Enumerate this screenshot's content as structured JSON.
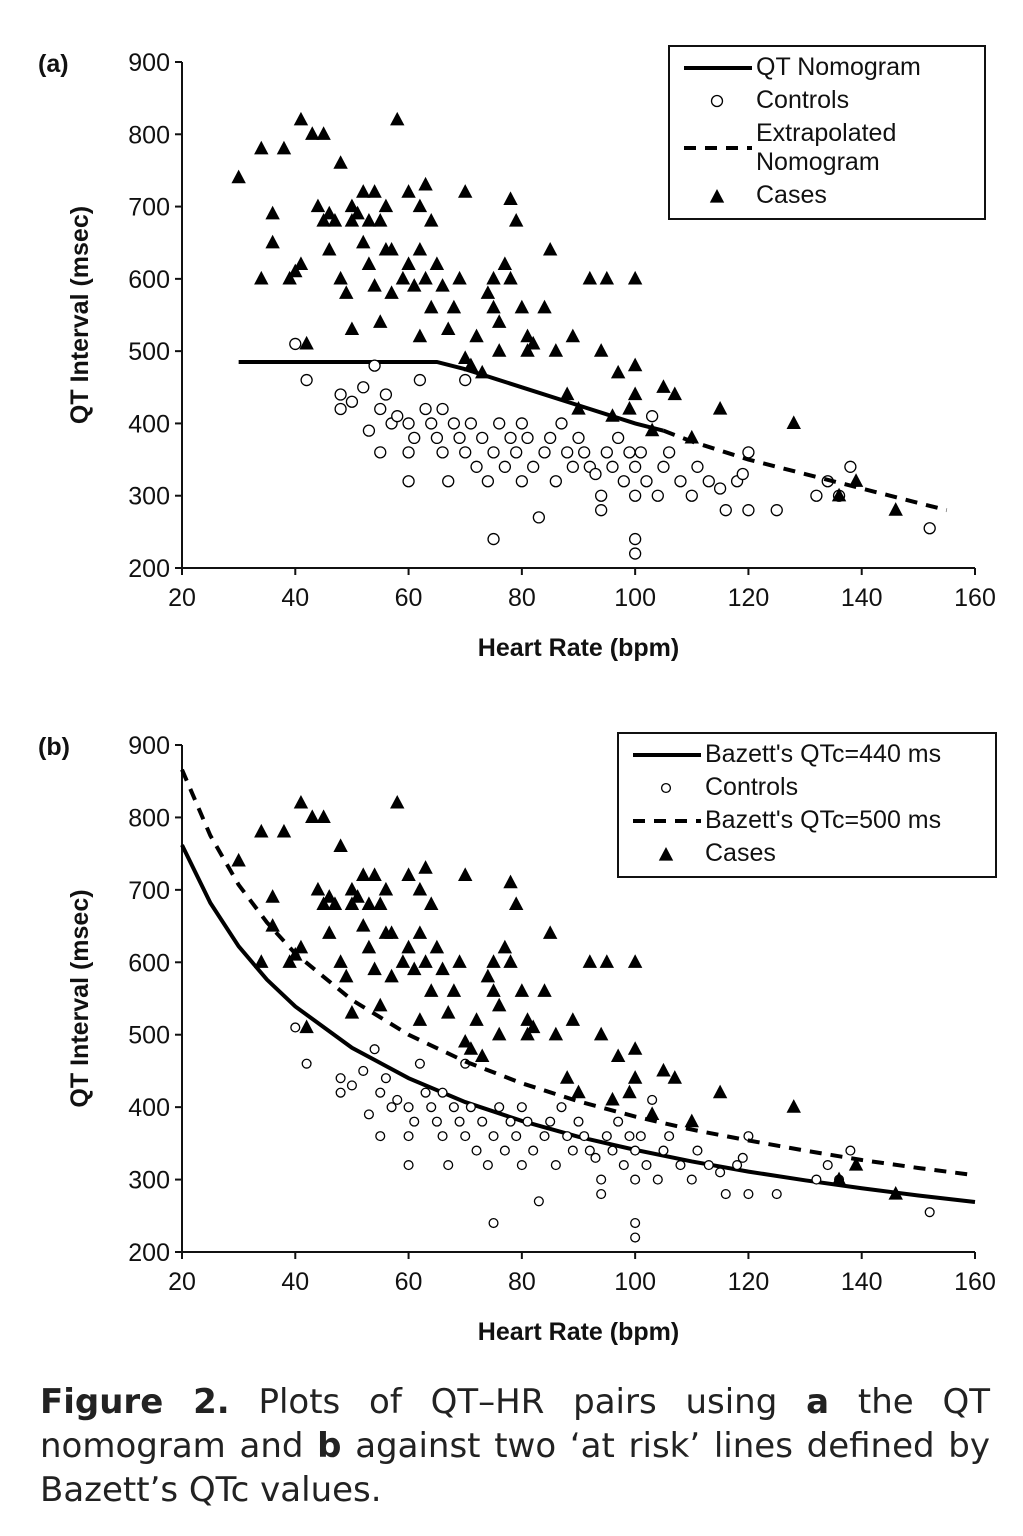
{
  "chart_data": [
    {
      "type": "scatter",
      "panel": "(a)",
      "xlabel": "Heart Rate (bpm)",
      "ylabel": "QT Interval (msec)",
      "xlim": [
        20,
        160
      ],
      "ylim": [
        200,
        900
      ],
      "xticks": [
        20,
        40,
        60,
        80,
        100,
        120,
        140,
        160
      ],
      "yticks": [
        200,
        300,
        400,
        500,
        600,
        700,
        800,
        900
      ],
      "legend": "upper right",
      "series": [
        {
          "name": "QT Nomogram",
          "color": "#000000",
          "style": "solid",
          "x": [
            30,
            65,
            70,
            80,
            90,
            100,
            105
          ],
          "values": [
            485,
            485,
            475,
            450,
            425,
            400,
            390
          ]
        },
        {
          "name": "Controls",
          "color": "#000000",
          "marker": "circle",
          "x": [
            40,
            42,
            48,
            48,
            50,
            52,
            53,
            54,
            55,
            55,
            56,
            57,
            58,
            60,
            60,
            60,
            61,
            62,
            63,
            64,
            65,
            66,
            66,
            67,
            68,
            69,
            70,
            70,
            71,
            72,
            73,
            74,
            75,
            75,
            76,
            77,
            78,
            79,
            80,
            80,
            81,
            82,
            83,
            84,
            85,
            86,
            87,
            88,
            89,
            90,
            91,
            92,
            93,
            94,
            94,
            95,
            96,
            97,
            98,
            99,
            100,
            100,
            100,
            100,
            101,
            102,
            103,
            104,
            105,
            106,
            108,
            110,
            111,
            113,
            115,
            116,
            118,
            119,
            120,
            120,
            125,
            132,
            134,
            136,
            138,
            152
          ],
          "values": [
            510,
            460,
            440,
            420,
            430,
            450,
            390,
            480,
            360,
            420,
            440,
            400,
            410,
            320,
            360,
            400,
            380,
            460,
            420,
            400,
            380,
            360,
            420,
            320,
            400,
            380,
            460,
            360,
            400,
            340,
            380,
            320,
            240,
            360,
            400,
            340,
            380,
            360,
            320,
            400,
            380,
            340,
            270,
            360,
            380,
            320,
            400,
            360,
            340,
            380,
            360,
            340,
            330,
            300,
            280,
            360,
            340,
            380,
            320,
            360,
            240,
            220,
            300,
            340,
            360,
            320,
            410,
            300,
            340,
            360,
            320,
            300,
            340,
            320,
            310,
            280,
            320,
            330,
            280,
            360,
            280,
            300,
            320,
            300,
            340,
            255
          ]
        },
        {
          "name": "Extrapolated Nomogram",
          "color": "#000000",
          "style": "dashed",
          "x": [
            105,
            110,
            120,
            130,
            140,
            150,
            155
          ],
          "values": [
            390,
            375,
            350,
            330,
            310,
            290,
            280
          ]
        },
        {
          "name": "Cases",
          "color": "#000000",
          "marker": "triangle",
          "x": [
            30,
            34,
            34,
            36,
            36,
            38,
            39,
            40,
            41,
            41,
            42,
            43,
            44,
            45,
            45,
            46,
            46,
            47,
            48,
            48,
            49,
            50,
            50,
            50,
            51,
            52,
            52,
            53,
            53,
            54,
            54,
            55,
            55,
            56,
            56,
            57,
            57,
            58,
            59,
            60,
            60,
            61,
            62,
            62,
            62,
            63,
            63,
            64,
            64,
            65,
            66,
            67,
            68,
            69,
            70,
            70,
            71,
            72,
            73,
            74,
            75,
            75,
            76,
            76,
            77,
            78,
            78,
            79,
            80,
            81,
            81,
            82,
            84,
            85,
            86,
            88,
            89,
            90,
            92,
            94,
            95,
            96,
            97,
            99,
            100,
            100,
            100,
            103,
            105,
            107,
            110,
            115,
            128,
            136,
            139,
            146
          ],
          "values": [
            740,
            600,
            780,
            690,
            650,
            780,
            600,
            610,
            820,
            620,
            510,
            800,
            700,
            800,
            680,
            690,
            640,
            680,
            760,
            600,
            580,
            700,
            680,
            530,
            690,
            650,
            720,
            680,
            620,
            720,
            590,
            540,
            680,
            700,
            640,
            640,
            580,
            820,
            600,
            720,
            620,
            590,
            700,
            640,
            520,
            730,
            600,
            560,
            680,
            620,
            590,
            530,
            560,
            600,
            720,
            490,
            480,
            520,
            470,
            580,
            600,
            560,
            540,
            500,
            620,
            710,
            600,
            680,
            560,
            520,
            500,
            510,
            560,
            640,
            500,
            440,
            520,
            420,
            600,
            500,
            600,
            410,
            470,
            420,
            600,
            440,
            480,
            390,
            450,
            440,
            380,
            420,
            400,
            300,
            320,
            280
          ]
        }
      ]
    },
    {
      "type": "scatter",
      "panel": "(b)",
      "xlabel": "Heart Rate (bpm)",
      "ylabel": "QT Interval (msec)",
      "xlim": [
        20,
        160
      ],
      "ylim": [
        200,
        900
      ],
      "xticks": [
        20,
        40,
        60,
        80,
        100,
        120,
        140,
        160
      ],
      "yticks": [
        200,
        300,
        400,
        500,
        600,
        700,
        800,
        900
      ],
      "legend": "upper right",
      "series": [
        {
          "name": "Bazett's QTc=440 ms",
          "color": "#000000",
          "style": "solid",
          "x": [
            20,
            25,
            30,
            35,
            40,
            50,
            60,
            70,
            80,
            90,
            100,
            110,
            120,
            130,
            140,
            150,
            160
          ],
          "values": [
            762,
            682,
            622,
            576,
            539,
            482,
            440,
            407,
            381,
            359,
            341,
            325,
            311,
            299,
            288,
            278,
            269
          ]
        },
        {
          "name": "Controls",
          "color": "#000000",
          "marker": "circle",
          "x": [
            40,
            42,
            48,
            48,
            50,
            52,
            53,
            54,
            55,
            55,
            56,
            57,
            58,
            60,
            60,
            60,
            61,
            62,
            63,
            64,
            65,
            66,
            66,
            67,
            68,
            69,
            70,
            70,
            71,
            72,
            73,
            74,
            75,
            75,
            76,
            77,
            78,
            79,
            80,
            80,
            81,
            82,
            83,
            84,
            85,
            86,
            87,
            88,
            89,
            90,
            91,
            92,
            93,
            94,
            94,
            95,
            96,
            97,
            98,
            99,
            100,
            100,
            100,
            100,
            101,
            102,
            103,
            104,
            105,
            106,
            108,
            110,
            111,
            113,
            115,
            116,
            118,
            119,
            120,
            120,
            125,
            132,
            134,
            136,
            138,
            152
          ],
          "values": [
            510,
            460,
            440,
            420,
            430,
            450,
            390,
            480,
            360,
            420,
            440,
            400,
            410,
            320,
            360,
            400,
            380,
            460,
            420,
            400,
            380,
            360,
            420,
            320,
            400,
            380,
            460,
            360,
            400,
            340,
            380,
            320,
            240,
            360,
            400,
            340,
            380,
            360,
            320,
            400,
            380,
            340,
            270,
            360,
            380,
            320,
            400,
            360,
            340,
            380,
            360,
            340,
            330,
            300,
            280,
            360,
            340,
            380,
            320,
            360,
            240,
            220,
            300,
            340,
            360,
            320,
            410,
            300,
            340,
            360,
            320,
            300,
            340,
            320,
            310,
            280,
            320,
            330,
            280,
            360,
            280,
            300,
            320,
            300,
            340,
            255
          ]
        },
        {
          "name": "Bazett's QTc=500 ms",
          "color": "#000000",
          "style": "dashed",
          "x": [
            20,
            25,
            30,
            35,
            40,
            50,
            60,
            70,
            80,
            90,
            100,
            110,
            120,
            130,
            140,
            150,
            160
          ],
          "values": [
            866,
            775,
            707,
            655,
            612,
            548,
            500,
            463,
            433,
            408,
            387,
            369,
            354,
            340,
            327,
            316,
            306
          ]
        },
        {
          "name": "Cases",
          "color": "#000000",
          "marker": "triangle",
          "x": [
            30,
            34,
            34,
            36,
            36,
            38,
            39,
            40,
            41,
            41,
            42,
            43,
            44,
            45,
            45,
            46,
            46,
            47,
            48,
            48,
            49,
            50,
            50,
            50,
            51,
            52,
            52,
            53,
            53,
            54,
            54,
            55,
            55,
            56,
            56,
            57,
            57,
            58,
            59,
            60,
            60,
            61,
            62,
            62,
            62,
            63,
            63,
            64,
            64,
            65,
            66,
            67,
            68,
            69,
            70,
            70,
            71,
            72,
            73,
            74,
            75,
            75,
            76,
            76,
            77,
            78,
            78,
            79,
            80,
            81,
            81,
            82,
            84,
            85,
            86,
            88,
            89,
            90,
            92,
            94,
            95,
            96,
            97,
            99,
            100,
            100,
            100,
            103,
            105,
            107,
            110,
            115,
            128,
            136,
            139,
            146
          ],
          "values": [
            740,
            600,
            780,
            690,
            650,
            780,
            600,
            610,
            820,
            620,
            510,
            800,
            700,
            800,
            680,
            690,
            640,
            680,
            760,
            600,
            580,
            700,
            680,
            530,
            690,
            650,
            720,
            680,
            620,
            720,
            590,
            540,
            680,
            700,
            640,
            640,
            580,
            820,
            600,
            720,
            620,
            590,
            700,
            640,
            520,
            730,
            600,
            560,
            680,
            620,
            590,
            530,
            560,
            600,
            720,
            490,
            480,
            520,
            470,
            580,
            600,
            560,
            540,
            500,
            620,
            710,
            600,
            680,
            560,
            520,
            500,
            510,
            560,
            640,
            500,
            440,
            520,
            420,
            600,
            500,
            600,
            410,
            470,
            420,
            600,
            440,
            480,
            390,
            450,
            440,
            380,
            420,
            400,
            300,
            320,
            280
          ]
        }
      ]
    }
  ],
  "caption": {
    "label": "Figure 2.",
    "parts": [
      "Plots of QT–HR pairs using",
      "a",
      "the QT nomogram and",
      "b",
      "against two ‘at risk’ lines defined by Bazett’s QTc values."
    ]
  }
}
